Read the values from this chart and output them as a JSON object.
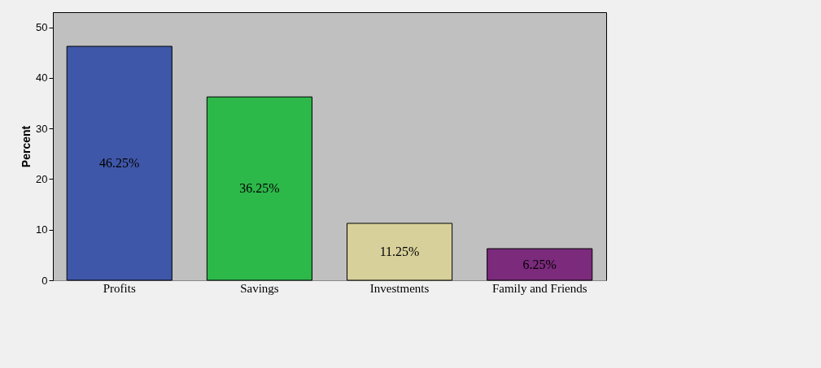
{
  "chart_data": {
    "type": "bar",
    "ylabel": "Percent",
    "categories": [
      "Profits",
      "Savings",
      "Investments",
      "Family and Friends"
    ],
    "values": [
      46.25,
      36.25,
      11.25,
      6.25
    ],
    "colors": [
      "#3f57a8",
      "#2db84a",
      "#d8d09a",
      "#7b2a7c"
    ],
    "value_labels": [
      "46.25%",
      "36.25%",
      "11.25%",
      "6.25%"
    ],
    "ylim": [
      0,
      53
    ],
    "yticks": [
      0,
      10,
      20,
      30,
      40,
      50
    ],
    "grid": false,
    "legend": false
  }
}
